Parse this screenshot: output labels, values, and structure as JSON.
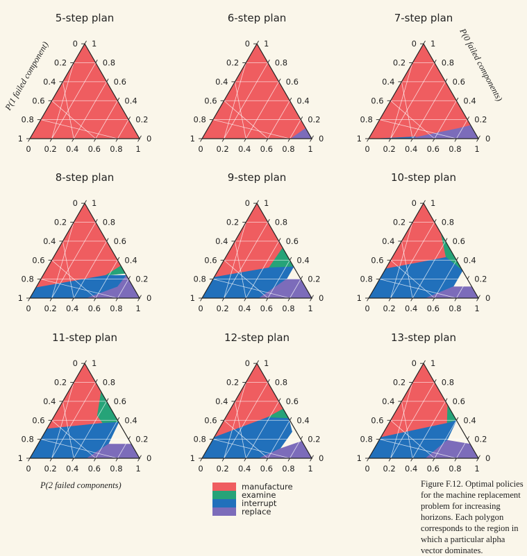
{
  "plots": [
    {
      "title": "5-step plan",
      "regions": [
        {
          "cls": "manufacture",
          "pts": [
            [
              0,
              0
            ],
            [
              1,
              0
            ],
            [
              0,
              1
            ]
          ]
        }
      ]
    },
    {
      "title": "6-step plan",
      "regions": [
        {
          "cls": "manufacture",
          "pts": [
            [
              0,
              0
            ],
            [
              0.81,
              0
            ],
            [
              0.89,
              0.11
            ],
            [
              0,
              1
            ]
          ]
        },
        {
          "cls": "replace",
          "pts": [
            [
              0.81,
              0
            ],
            [
              1,
              0
            ],
            [
              0.89,
              0.11
            ]
          ]
        }
      ]
    },
    {
      "title": "7-step plan",
      "regions": [
        {
          "cls": "manufacture",
          "pts": [
            [
              0,
              0
            ],
            [
              0.37,
              0
            ],
            [
              0.77,
              0.11
            ],
            [
              0.86,
              0.14
            ],
            [
              0,
              1
            ]
          ]
        },
        {
          "cls": "interrupt",
          "pts": [
            [
              0.06,
              0
            ],
            [
              0.37,
              0
            ],
            [
              0.42,
              0.02
            ]
          ]
        },
        {
          "cls": "replace",
          "pts": [
            [
              0.37,
              0
            ],
            [
              1,
              0
            ],
            [
              0.86,
              0.14
            ],
            [
              0.77,
              0.11
            ]
          ]
        }
      ]
    },
    {
      "title": "8-step plan",
      "regions": [
        {
          "cls": "manufacture",
          "pts": [
            [
              0,
              0.11
            ],
            [
              0.57,
              0.24
            ],
            [
              0.66,
              0.34
            ],
            [
              0,
              1
            ]
          ]
        },
        {
          "cls": "examine",
          "pts": [
            [
              0.57,
              0.24
            ],
            [
              0.74,
              0.26
            ],
            [
              0.66,
              0.34
            ]
          ]
        },
        {
          "cls": "interrupt",
          "pts": [
            [
              0,
              0
            ],
            [
              0.52,
              0
            ],
            [
              0.74,
              0.12
            ],
            [
              0.76,
              0.24
            ],
            [
              0.57,
              0.24
            ],
            [
              0,
              0.11
            ]
          ]
        },
        {
          "cls": "replace",
          "pts": [
            [
              0.52,
              0
            ],
            [
              1,
              0
            ],
            [
              0.76,
              0.24
            ],
            [
              0.74,
              0.12
            ]
          ]
        }
      ]
    },
    {
      "title": "9-step plan",
      "regions": [
        {
          "cls": "manufacture",
          "pts": [
            [
              0,
              0.22
            ],
            [
              0.45,
              0.32
            ],
            [
              0.47,
              0.53
            ],
            [
              0,
              1
            ]
          ]
        },
        {
          "cls": "examine",
          "pts": [
            [
              0.45,
              0.32
            ],
            [
              0.67,
              0.33
            ],
            [
              0.47,
              0.53
            ]
          ]
        },
        {
          "cls": "interrupt",
          "pts": [
            [
              0,
              0
            ],
            [
              0.52,
              0
            ],
            [
              0.67,
              0.2
            ],
            [
              0.67,
              0.33
            ],
            [
              0.45,
              0.32
            ],
            [
              0,
              0.22
            ]
          ]
        },
        {
          "cls": "replace",
          "pts": [
            [
              0.52,
              0
            ],
            [
              1,
              0
            ],
            [
              0.8,
              0.2
            ],
            [
              0.67,
              0.2
            ]
          ]
        }
      ]
    },
    {
      "title": "10-step plan",
      "regions": [
        {
          "cls": "manufacture",
          "pts": [
            [
              0,
              0.31
            ],
            [
              0.29,
              0.38
            ],
            [
              0.49,
              0.43
            ],
            [
              0.32,
              0.68
            ],
            [
              0,
              1
            ]
          ]
        },
        {
          "cls": "examine",
          "pts": [
            [
              0.49,
              0.43
            ],
            [
              0.71,
              0.29
            ],
            [
              0.32,
              0.68
            ]
          ]
        },
        {
          "cls": "interrupt",
          "pts": [
            [
              0,
              0
            ],
            [
              0.52,
              0
            ],
            [
              0.71,
              0.12
            ],
            [
              0.71,
              0.29
            ],
            [
              0.49,
              0.43
            ],
            [
              0.29,
              0.38
            ],
            [
              0,
              0.31
            ]
          ]
        },
        {
          "cls": "replace",
          "pts": [
            [
              0.52,
              0
            ],
            [
              1,
              0
            ],
            [
              0.88,
              0.12
            ],
            [
              0.71,
              0.12
            ]
          ]
        }
      ]
    },
    {
      "title": "11-step plan",
      "regions": [
        {
          "cls": "manufacture",
          "pts": [
            [
              0,
              0.31
            ],
            [
              0.48,
              0.37
            ],
            [
              0.39,
              0.45
            ],
            [
              0.3,
              0.7
            ],
            [
              0,
              1
            ]
          ]
        },
        {
          "cls": "examine",
          "pts": [
            [
              0.39,
              0.45
            ],
            [
              0.48,
              0.37
            ],
            [
              0.62,
              0.38
            ],
            [
              0.3,
              0.7
            ]
          ]
        },
        {
          "cls": "interrupt",
          "pts": [
            [
              0,
              0
            ],
            [
              0.52,
              0
            ],
            [
              0.64,
              0.15
            ],
            [
              0.62,
              0.38
            ],
            [
              0.48,
              0.37
            ],
            [
              0,
              0.31
            ]
          ]
        },
        {
          "cls": "replace",
          "pts": [
            [
              0.52,
              0
            ],
            [
              1,
              0
            ],
            [
              0.85,
              0.15
            ],
            [
              0.64,
              0.15
            ]
          ]
        }
      ]
    },
    {
      "title": "12-step plan",
      "regions": [
        {
          "cls": "manufacture",
          "pts": [
            [
              0,
              0.22
            ],
            [
              0.38,
              0.43
            ],
            [
              0.48,
              0.52
            ],
            [
              0.41,
              0.59
            ],
            [
              0.3,
              0.7
            ],
            [
              0,
              1
            ]
          ]
        },
        {
          "cls": "examine",
          "pts": [
            [
              0.41,
              0.59
            ],
            [
              0.3,
              0.7
            ],
            [
              0.58,
              0.42
            ],
            [
              0.38,
              0.43
            ],
            [
              0.48,
              0.52
            ]
          ]
        },
        {
          "cls": "interrupt",
          "pts": [
            [
              0,
              0
            ],
            [
              0.52,
              0
            ],
            [
              0.66,
              0.1
            ],
            [
              0.68,
              0.28
            ],
            [
              0.58,
              0.42
            ],
            [
              0.38,
              0.43
            ],
            [
              0,
              0.22
            ]
          ]
        },
        {
          "cls": "replace",
          "pts": [
            [
              0.52,
              0
            ],
            [
              1,
              0
            ],
            [
              0.82,
              0.18
            ],
            [
              0.66,
              0.1
            ]
          ]
        }
      ]
    },
    {
      "title": "13-step plan",
      "regions": [
        {
          "cls": "manufacture",
          "pts": [
            [
              0,
              0.22
            ],
            [
              0.53,
              0.37
            ],
            [
              0.44,
              0.56
            ],
            [
              0.25,
              0.75
            ],
            [
              0,
              1
            ]
          ]
        },
        {
          "cls": "examine",
          "pts": [
            [
              0.44,
              0.56
            ],
            [
              0.53,
              0.37
            ],
            [
              0.6,
              0.4
            ],
            [
              0.25,
              0.75
            ]
          ]
        },
        {
          "cls": "interrupt",
          "pts": [
            [
              0,
              0
            ],
            [
              0.52,
              0
            ],
            [
              0.62,
              0.19
            ],
            [
              0.6,
              0.4
            ],
            [
              0.53,
              0.37
            ],
            [
              0,
              0.22
            ]
          ]
        },
        {
          "cls": "replace",
          "pts": [
            [
              0.52,
              0
            ],
            [
              1,
              0
            ],
            [
              0.85,
              0.15
            ],
            [
              0.62,
              0.19
            ]
          ]
        }
      ]
    }
  ],
  "ticks": {
    "bottom": [
      "0",
      "0.2",
      "0.4",
      "0.6",
      "0.8",
      "1"
    ],
    "left": [
      "0",
      "0.2",
      "0.4",
      "0.6",
      "0.8",
      "1"
    ],
    "right": [
      "0",
      "0.2",
      "0.4",
      "0.6",
      "0.8",
      "1"
    ]
  },
  "axis_labels": {
    "left": "P(1 failed component)",
    "right": "P(0 failed components)",
    "bottom": "P(2 failed components)"
  },
  "colors": {
    "manufacture": "#ef5d60",
    "examine": "#26a378",
    "interrupt": "#2170bb",
    "replace": "#7c6cba",
    "grid": "#ffffff"
  },
  "legend": [
    {
      "key": "manufacture",
      "label": "manufacture"
    },
    {
      "key": "examine",
      "label": "examine"
    },
    {
      "key": "interrupt",
      "label": "interrupt"
    },
    {
      "key": "replace",
      "label": "replace"
    }
  ],
  "caption": "Figure F.12.  Optimal policies for the machine replacement problem for increasing horizons. Each polygon corresponds to the region in which a particular alpha vector dominates."
}
